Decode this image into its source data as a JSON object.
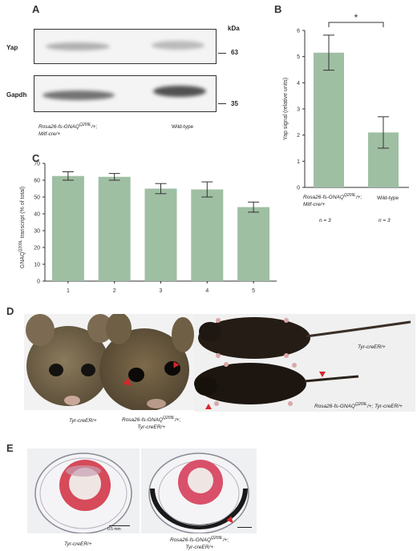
{
  "panelA": {
    "letter": "A",
    "row1_label": "Yap",
    "row2_label": "Gapdh",
    "kda_label": "kDa",
    "mw1": "63",
    "mw2": "35",
    "lane1_line1": "Rosa26-fs-GNAQ",
    "lane1_sup": "Q209L",
    "lane1_line1_suffix": "/+;",
    "lane1_line2": "Mitf-cre/+",
    "lane2": "Wild-type"
  },
  "panelB": {
    "letter": "B",
    "significance": "*",
    "cat1_line1": "Rosa26-fs-GNAQ",
    "cat1_sup": "Q209L",
    "cat1_suffix": "/+;",
    "cat1_line2": "Mitf-cre/+",
    "cat2": "Wild-type",
    "n1": "n = 3",
    "n2": "n = 3"
  },
  "panelC": {
    "letter": "C",
    "ylabel_pre": "GNAQ",
    "ylabel_sup": "Q209L",
    "ylabel_post": " transcript (% of total)"
  },
  "panelD": {
    "letter": "D",
    "label_left": "Tyr-creER/+",
    "label_mid_line1": "Rosa26-fs-GNAQ",
    "label_mid_sup": "Q209L",
    "label_mid_suffix": "/+;",
    "label_mid_line2": "Tyr-creER/+",
    "label_right_top": "Tyr-creER/+",
    "label_right_bottom_pre": "Rosa26-fs-GNAQ",
    "label_right_bottom_sup": "Q209L",
    "label_right_bottom_post": "/+; Tyr-creER/+"
  },
  "panelE": {
    "letter": "E",
    "scale_label": "0.5 mm",
    "label_left": "Tyr-creER/+",
    "label_right_line1": "Rosa26-fs-GNAQ",
    "label_right_sup": "Q209L",
    "label_right_suffix": "/+;",
    "label_right_line2": "Tyr-creER/+"
  },
  "colors": {
    "bar_fill": "#9fbfa3",
    "arrow_red": "#d9262a",
    "tissue_red": "#d64a5a"
  },
  "chart_data": [
    {
      "type": "bar",
      "title": "",
      "xlabel": "",
      "ylabel": "Yap signal (relative units)",
      "categories": [
        "Rosa26-fs-GNAQQ209L/+; Mitf-cre/+",
        "Wild-type"
      ],
      "values": [
        5.15,
        2.1
      ],
      "errors": [
        0.67,
        0.6
      ],
      "ylim": [
        0,
        6
      ],
      "yticks": [
        0,
        1,
        2,
        3,
        4,
        5,
        6
      ],
      "grid": false
    },
    {
      "type": "bar",
      "title": "",
      "xlabel": "",
      "ylabel": "GNAQQ209L transcript (% of total)",
      "categories": [
        "1",
        "2",
        "3",
        "4",
        "5"
      ],
      "values": [
        62.5,
        62,
        55,
        54.5,
        44
      ],
      "errors": [
        2.5,
        2,
        3,
        4.5,
        3
      ],
      "ylim": [
        0,
        70
      ],
      "yticks": [
        0,
        10,
        20,
        30,
        40,
        50,
        60,
        70
      ],
      "grid": false
    }
  ]
}
